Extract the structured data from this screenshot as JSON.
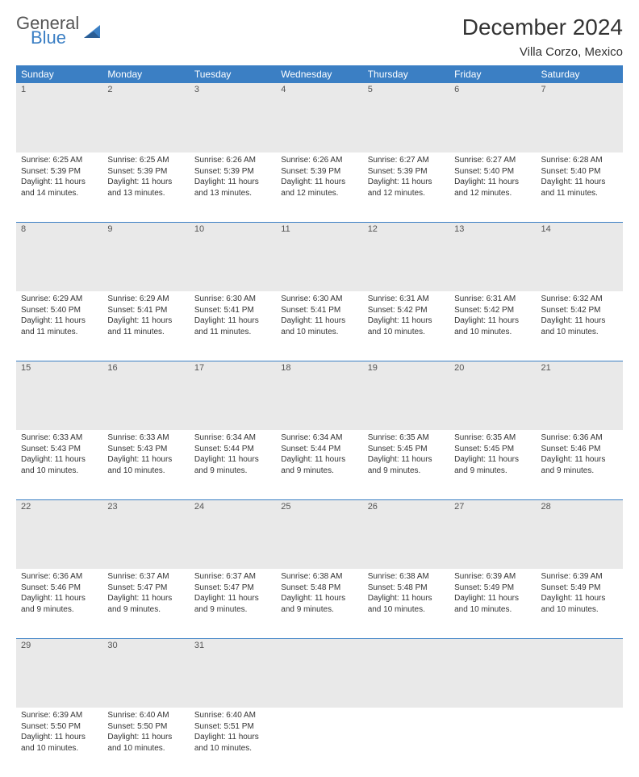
{
  "brand": {
    "part1": "General",
    "part2": "Blue"
  },
  "title": "December 2024",
  "location": "Villa Corzo, Mexico",
  "colors": {
    "header_bg": "#3b7fc4",
    "header_text": "#ffffff",
    "daynum_bg": "#e9e9e9",
    "border": "#3b7fc4",
    "logo_blue": "#3b7fc4",
    "logo_gray": "#555555"
  },
  "weekdays": [
    "Sunday",
    "Monday",
    "Tuesday",
    "Wednesday",
    "Thursday",
    "Friday",
    "Saturday"
  ],
  "days": [
    {
      "n": "1",
      "sr": "Sunrise: 6:25 AM",
      "ss": "Sunset: 5:39 PM",
      "dl1": "Daylight: 11 hours",
      "dl2": "and 14 minutes."
    },
    {
      "n": "2",
      "sr": "Sunrise: 6:25 AM",
      "ss": "Sunset: 5:39 PM",
      "dl1": "Daylight: 11 hours",
      "dl2": "and 13 minutes."
    },
    {
      "n": "3",
      "sr": "Sunrise: 6:26 AM",
      "ss": "Sunset: 5:39 PM",
      "dl1": "Daylight: 11 hours",
      "dl2": "and 13 minutes."
    },
    {
      "n": "4",
      "sr": "Sunrise: 6:26 AM",
      "ss": "Sunset: 5:39 PM",
      "dl1": "Daylight: 11 hours",
      "dl2": "and 12 minutes."
    },
    {
      "n": "5",
      "sr": "Sunrise: 6:27 AM",
      "ss": "Sunset: 5:39 PM",
      "dl1": "Daylight: 11 hours",
      "dl2": "and 12 minutes."
    },
    {
      "n": "6",
      "sr": "Sunrise: 6:27 AM",
      "ss": "Sunset: 5:40 PM",
      "dl1": "Daylight: 11 hours",
      "dl2": "and 12 minutes."
    },
    {
      "n": "7",
      "sr": "Sunrise: 6:28 AM",
      "ss": "Sunset: 5:40 PM",
      "dl1": "Daylight: 11 hours",
      "dl2": "and 11 minutes."
    },
    {
      "n": "8",
      "sr": "Sunrise: 6:29 AM",
      "ss": "Sunset: 5:40 PM",
      "dl1": "Daylight: 11 hours",
      "dl2": "and 11 minutes."
    },
    {
      "n": "9",
      "sr": "Sunrise: 6:29 AM",
      "ss": "Sunset: 5:41 PM",
      "dl1": "Daylight: 11 hours",
      "dl2": "and 11 minutes."
    },
    {
      "n": "10",
      "sr": "Sunrise: 6:30 AM",
      "ss": "Sunset: 5:41 PM",
      "dl1": "Daylight: 11 hours",
      "dl2": "and 11 minutes."
    },
    {
      "n": "11",
      "sr": "Sunrise: 6:30 AM",
      "ss": "Sunset: 5:41 PM",
      "dl1": "Daylight: 11 hours",
      "dl2": "and 10 minutes."
    },
    {
      "n": "12",
      "sr": "Sunrise: 6:31 AM",
      "ss": "Sunset: 5:42 PM",
      "dl1": "Daylight: 11 hours",
      "dl2": "and 10 minutes."
    },
    {
      "n": "13",
      "sr": "Sunrise: 6:31 AM",
      "ss": "Sunset: 5:42 PM",
      "dl1": "Daylight: 11 hours",
      "dl2": "and 10 minutes."
    },
    {
      "n": "14",
      "sr": "Sunrise: 6:32 AM",
      "ss": "Sunset: 5:42 PM",
      "dl1": "Daylight: 11 hours",
      "dl2": "and 10 minutes."
    },
    {
      "n": "15",
      "sr": "Sunrise: 6:33 AM",
      "ss": "Sunset: 5:43 PM",
      "dl1": "Daylight: 11 hours",
      "dl2": "and 10 minutes."
    },
    {
      "n": "16",
      "sr": "Sunrise: 6:33 AM",
      "ss": "Sunset: 5:43 PM",
      "dl1": "Daylight: 11 hours",
      "dl2": "and 10 minutes."
    },
    {
      "n": "17",
      "sr": "Sunrise: 6:34 AM",
      "ss": "Sunset: 5:44 PM",
      "dl1": "Daylight: 11 hours",
      "dl2": "and 9 minutes."
    },
    {
      "n": "18",
      "sr": "Sunrise: 6:34 AM",
      "ss": "Sunset: 5:44 PM",
      "dl1": "Daylight: 11 hours",
      "dl2": "and 9 minutes."
    },
    {
      "n": "19",
      "sr": "Sunrise: 6:35 AM",
      "ss": "Sunset: 5:45 PM",
      "dl1": "Daylight: 11 hours",
      "dl2": "and 9 minutes."
    },
    {
      "n": "20",
      "sr": "Sunrise: 6:35 AM",
      "ss": "Sunset: 5:45 PM",
      "dl1": "Daylight: 11 hours",
      "dl2": "and 9 minutes."
    },
    {
      "n": "21",
      "sr": "Sunrise: 6:36 AM",
      "ss": "Sunset: 5:46 PM",
      "dl1": "Daylight: 11 hours",
      "dl2": "and 9 minutes."
    },
    {
      "n": "22",
      "sr": "Sunrise: 6:36 AM",
      "ss": "Sunset: 5:46 PM",
      "dl1": "Daylight: 11 hours",
      "dl2": "and 9 minutes."
    },
    {
      "n": "23",
      "sr": "Sunrise: 6:37 AM",
      "ss": "Sunset: 5:47 PM",
      "dl1": "Daylight: 11 hours",
      "dl2": "and 9 minutes."
    },
    {
      "n": "24",
      "sr": "Sunrise: 6:37 AM",
      "ss": "Sunset: 5:47 PM",
      "dl1": "Daylight: 11 hours",
      "dl2": "and 9 minutes."
    },
    {
      "n": "25",
      "sr": "Sunrise: 6:38 AM",
      "ss": "Sunset: 5:48 PM",
      "dl1": "Daylight: 11 hours",
      "dl2": "and 9 minutes."
    },
    {
      "n": "26",
      "sr": "Sunrise: 6:38 AM",
      "ss": "Sunset: 5:48 PM",
      "dl1": "Daylight: 11 hours",
      "dl2": "and 10 minutes."
    },
    {
      "n": "27",
      "sr": "Sunrise: 6:39 AM",
      "ss": "Sunset: 5:49 PM",
      "dl1": "Daylight: 11 hours",
      "dl2": "and 10 minutes."
    },
    {
      "n": "28",
      "sr": "Sunrise: 6:39 AM",
      "ss": "Sunset: 5:49 PM",
      "dl1": "Daylight: 11 hours",
      "dl2": "and 10 minutes."
    },
    {
      "n": "29",
      "sr": "Sunrise: 6:39 AM",
      "ss": "Sunset: 5:50 PM",
      "dl1": "Daylight: 11 hours",
      "dl2": "and 10 minutes."
    },
    {
      "n": "30",
      "sr": "Sunrise: 6:40 AM",
      "ss": "Sunset: 5:50 PM",
      "dl1": "Daylight: 11 hours",
      "dl2": "and 10 minutes."
    },
    {
      "n": "31",
      "sr": "Sunrise: 6:40 AM",
      "ss": "Sunset: 5:51 PM",
      "dl1": "Daylight: 11 hours",
      "dl2": "and 10 minutes."
    }
  ]
}
